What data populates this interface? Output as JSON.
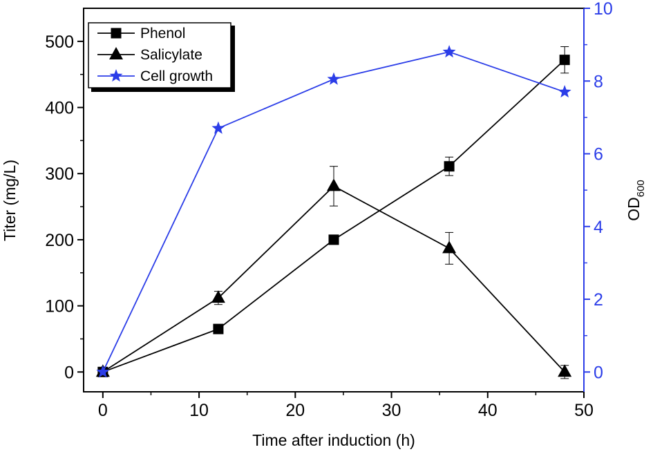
{
  "chart_data": {
    "type": "line",
    "xlabel": "Time after induction (h)",
    "ylabel": "Titer (mg/L)",
    "y2label": {
      "base": "OD",
      "subscript": "600"
    },
    "xlim": [
      -2,
      50
    ],
    "ylim": [
      -30,
      550
    ],
    "y2lim": [
      -0.545,
      10
    ],
    "x_ticks": [
      0,
      10,
      20,
      30,
      40,
      50
    ],
    "y_ticks": [
      0,
      100,
      200,
      300,
      400,
      500
    ],
    "y2_ticks": [
      0,
      2,
      4,
      6,
      8,
      10
    ],
    "legend_position": "top-left",
    "colors": {
      "black": "#000000",
      "blue": "#2b3de8"
    },
    "series": [
      {
        "name": "Phenol",
        "axis": "left",
        "marker": "square",
        "color": "#000000",
        "x": [
          0,
          12,
          24,
          36,
          48
        ],
        "y": [
          0,
          65,
          200,
          311,
          472
        ],
        "err": [
          0,
          0,
          0,
          14,
          20
        ]
      },
      {
        "name": "Salicylate",
        "axis": "left",
        "marker": "triangle",
        "color": "#000000",
        "x": [
          0,
          12,
          24,
          36,
          48
        ],
        "y": [
          0,
          112,
          281,
          187,
          0
        ],
        "err": [
          0,
          10,
          30,
          24,
          10
        ]
      },
      {
        "name": "Cell growth",
        "axis": "right",
        "marker": "star",
        "color": "#2b3de8",
        "x": [
          0,
          12,
          24,
          36,
          48
        ],
        "y": [
          0,
          6.7,
          8.05,
          8.8,
          7.7
        ],
        "err": [
          0,
          0,
          0,
          0,
          0
        ]
      }
    ]
  }
}
